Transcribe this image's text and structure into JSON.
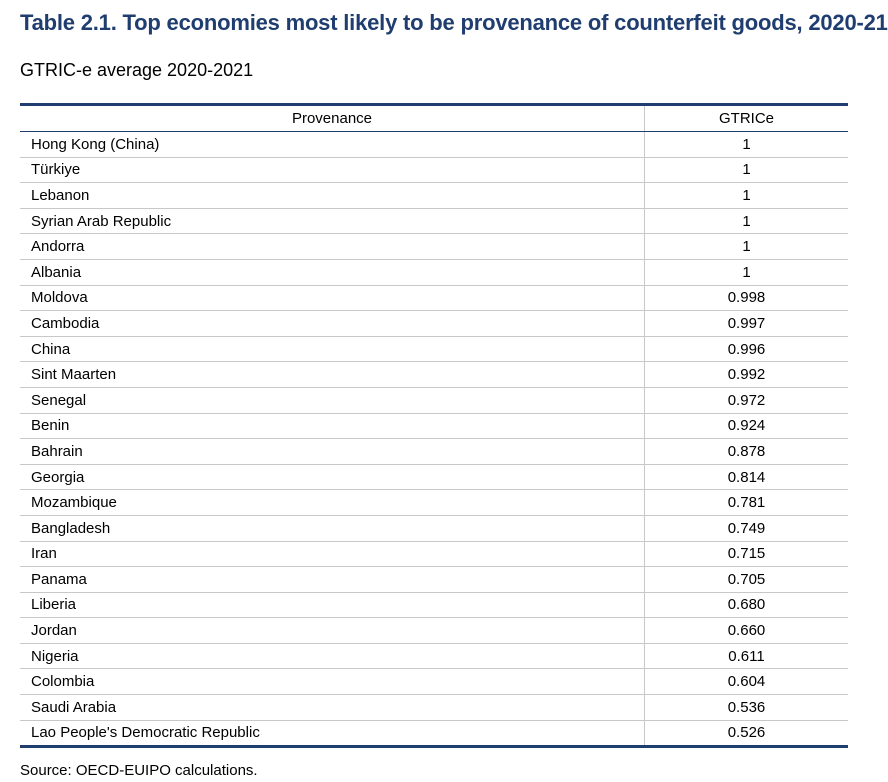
{
  "title": "Table 2.1. Top economies most likely to be provenance of counterfeit goods, 2020-21",
  "subtitle": "GTRIC-e average 2020-2021",
  "table": {
    "headers": [
      "Provenance",
      "GTRICe"
    ],
    "rows": [
      {
        "provenance": "Hong Kong (China)",
        "value": "1"
      },
      {
        "provenance": "Türkiye",
        "value": "1"
      },
      {
        "provenance": "Lebanon",
        "value": "1"
      },
      {
        "provenance": "Syrian Arab Republic",
        "value": "1"
      },
      {
        "provenance": "Andorra",
        "value": "1"
      },
      {
        "provenance": "Albania",
        "value": "1"
      },
      {
        "provenance": "Moldova",
        "value": "0.998"
      },
      {
        "provenance": "Cambodia",
        "value": "0.997"
      },
      {
        "provenance": "China",
        "value": "0.996"
      },
      {
        "provenance": "Sint Maarten",
        "value": "0.992"
      },
      {
        "provenance": "Senegal",
        "value": "0.972"
      },
      {
        "provenance": "Benin",
        "value": "0.924"
      },
      {
        "provenance": "Bahrain",
        "value": "0.878"
      },
      {
        "provenance": "Georgia",
        "value": "0.814"
      },
      {
        "provenance": "Mozambique",
        "value": "0.781"
      },
      {
        "provenance": "Bangladesh",
        "value": "0.749"
      },
      {
        "provenance": "Iran",
        "value": "0.715"
      },
      {
        "provenance": "Panama",
        "value": "0.705"
      },
      {
        "provenance": "Liberia",
        "value": "0.680"
      },
      {
        "provenance": "Jordan",
        "value": "0.660"
      },
      {
        "provenance": "Nigeria",
        "value": "0.611"
      },
      {
        "provenance": "Colombia",
        "value": "0.604"
      },
      {
        "provenance": "Saudi Arabia",
        "value": "0.536"
      },
      {
        "provenance": "Lao People's Democratic Republic",
        "value": "0.526"
      }
    ]
  },
  "source": "Source: OECD-EUIPO calculations.",
  "colors": {
    "title": "#1f3d6e",
    "rule": "#1f3d6e",
    "grid": "#c8c8c8"
  }
}
